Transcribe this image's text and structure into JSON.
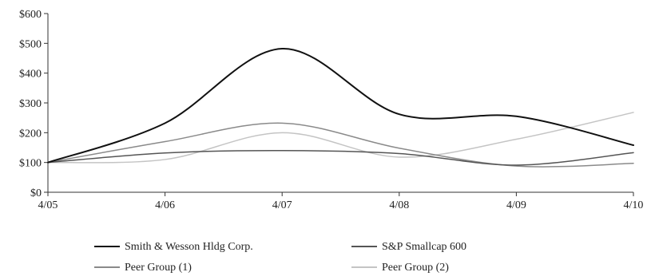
{
  "chart_data": {
    "type": "line",
    "title": "",
    "xlabel": "",
    "ylabel": "",
    "x": [
      "4/05",
      "4/06",
      "4/07",
      "4/08",
      "4/09",
      "4/10"
    ],
    "ylim": [
      0,
      600
    ],
    "yticks": [
      0,
      100,
      200,
      300,
      400,
      500,
      600
    ],
    "ytick_labels": [
      "$0",
      "$100",
      "$200",
      "$300",
      "$400",
      "$500",
      "$600"
    ],
    "grid": false,
    "legend_position": "bottom",
    "series": [
      {
        "name": "Smith & Wesson Hldg Corp.",
        "values": [
          100,
          232,
          482,
          262,
          255,
          158
        ],
        "color": "#111111",
        "width": 2
      },
      {
        "name": "S&P Smallcap 600",
        "values": [
          100,
          132,
          140,
          130,
          91,
          133
        ],
        "color": "#555555",
        "width": 1.5
      },
      {
        "name": "Peer Group (1)",
        "values": [
          100,
          170,
          232,
          148,
          88,
          97
        ],
        "color": "#8a8a8a",
        "width": 1.5
      },
      {
        "name": "Peer Group (2)",
        "values": [
          100,
          110,
          200,
          118,
          178,
          268
        ],
        "color": "#c4c4c4",
        "width": 1.5
      }
    ]
  }
}
